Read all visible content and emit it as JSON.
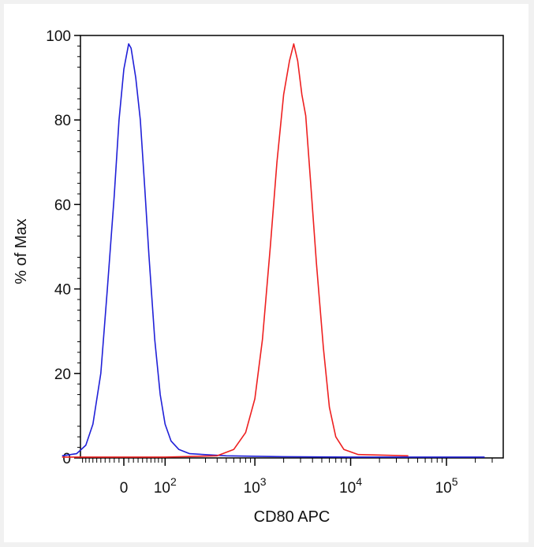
{
  "chart_data": {
    "type": "line",
    "title": "",
    "xlabel": "CD80 APC",
    "ylabel": "% of Max",
    "xscale": "biexponential",
    "ylim": [
      0,
      100
    ],
    "grid": false,
    "yticks": [
      0,
      20,
      40,
      60,
      80,
      100
    ],
    "xticks": [
      {
        "value": 0,
        "base": "0",
        "exp": ""
      },
      {
        "value": 100,
        "base": "10",
        "exp": "2"
      },
      {
        "value": 1000,
        "base": "10",
        "exp": "3"
      },
      {
        "value": 10000,
        "base": "10",
        "exp": "4"
      },
      {
        "value": 100000,
        "base": "10",
        "exp": "5"
      }
    ],
    "series": [
      {
        "color": "#2020d8",
        "points": [
          [
            -180,
            0.5
          ],
          [
            -120,
            1
          ],
          [
            -90,
            3
          ],
          [
            -70,
            8
          ],
          [
            -50,
            20
          ],
          [
            -35,
            40
          ],
          [
            -20,
            62
          ],
          [
            -10,
            80
          ],
          [
            0,
            92
          ],
          [
            10,
            98
          ],
          [
            15,
            97
          ],
          [
            25,
            90
          ],
          [
            35,
            80
          ],
          [
            45,
            64
          ],
          [
            55,
            48
          ],
          [
            70,
            28
          ],
          [
            85,
            15
          ],
          [
            100,
            8
          ],
          [
            120,
            4
          ],
          [
            150,
            2
          ],
          [
            200,
            1
          ],
          [
            500,
            0.5
          ],
          [
            2000,
            0.3
          ],
          [
            10000,
            0.2
          ],
          [
            250000,
            0.2
          ]
        ]
      },
      {
        "color": "#ee2020",
        "points": [
          [
            -180,
            0.2
          ],
          [
            100,
            0.2
          ],
          [
            400,
            0.5
          ],
          [
            600,
            2
          ],
          [
            800,
            6
          ],
          [
            1000,
            14
          ],
          [
            1200,
            28
          ],
          [
            1450,
            50
          ],
          [
            1700,
            70
          ],
          [
            2000,
            86
          ],
          [
            2300,
            94
          ],
          [
            2550,
            98
          ],
          [
            2800,
            94
          ],
          [
            3100,
            86
          ],
          [
            3400,
            81
          ],
          [
            3800,
            66
          ],
          [
            4400,
            46
          ],
          [
            5200,
            26
          ],
          [
            6000,
            12
          ],
          [
            7000,
            5
          ],
          [
            8500,
            2
          ],
          [
            12000,
            0.8
          ],
          [
            40000,
            0.5
          ]
        ]
      }
    ]
  }
}
